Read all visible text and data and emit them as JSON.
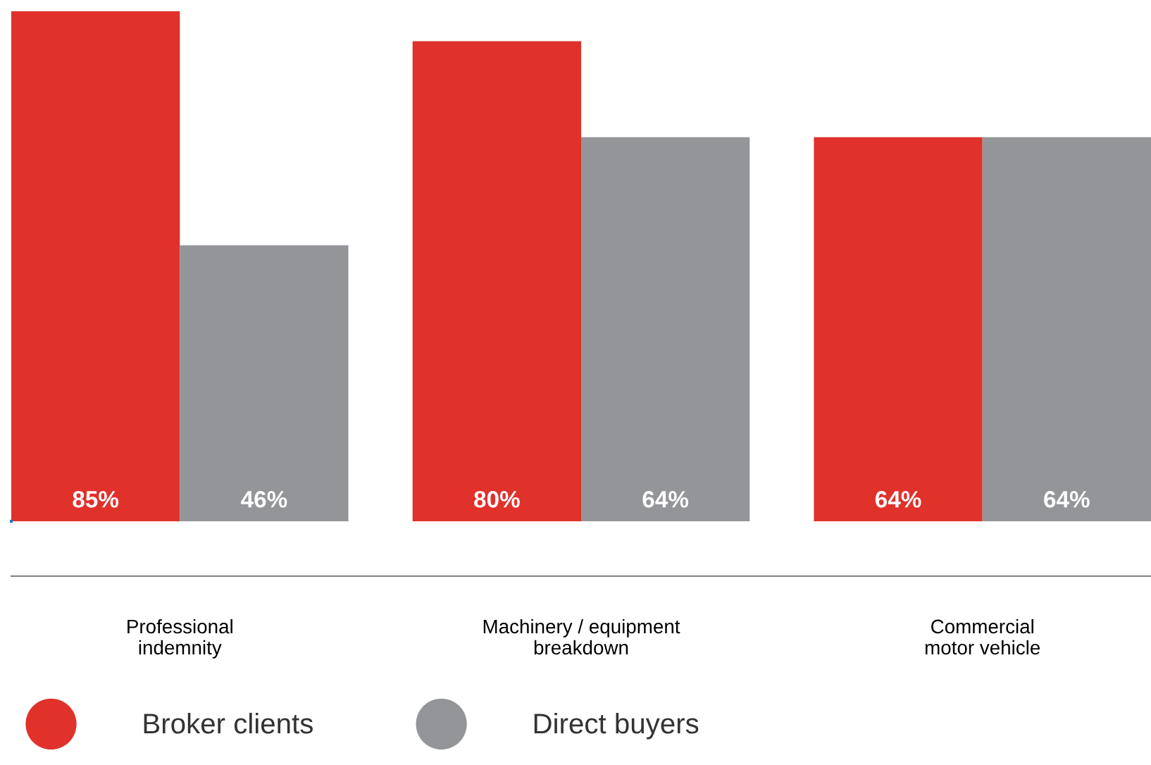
{
  "chart_data": {
    "type": "bar",
    "categories": [
      "Professional\nindemnity",
      "Machinery / equipment\nbreakdown",
      "Commercial\nmotor vehicle"
    ],
    "series": [
      {
        "name": "Broker clients",
        "color": "#e0312b",
        "values": [
          85,
          80,
          64
        ],
        "value_labels": [
          "85%",
          "80%",
          "64%"
        ]
      },
      {
        "name": "Direct buyers",
        "color": "#939598",
        "values": [
          46,
          64,
          64
        ],
        "value_labels": [
          "46%",
          "64%",
          "64%"
        ]
      }
    ],
    "legend": "bottom left",
    "grid": false
  }
}
